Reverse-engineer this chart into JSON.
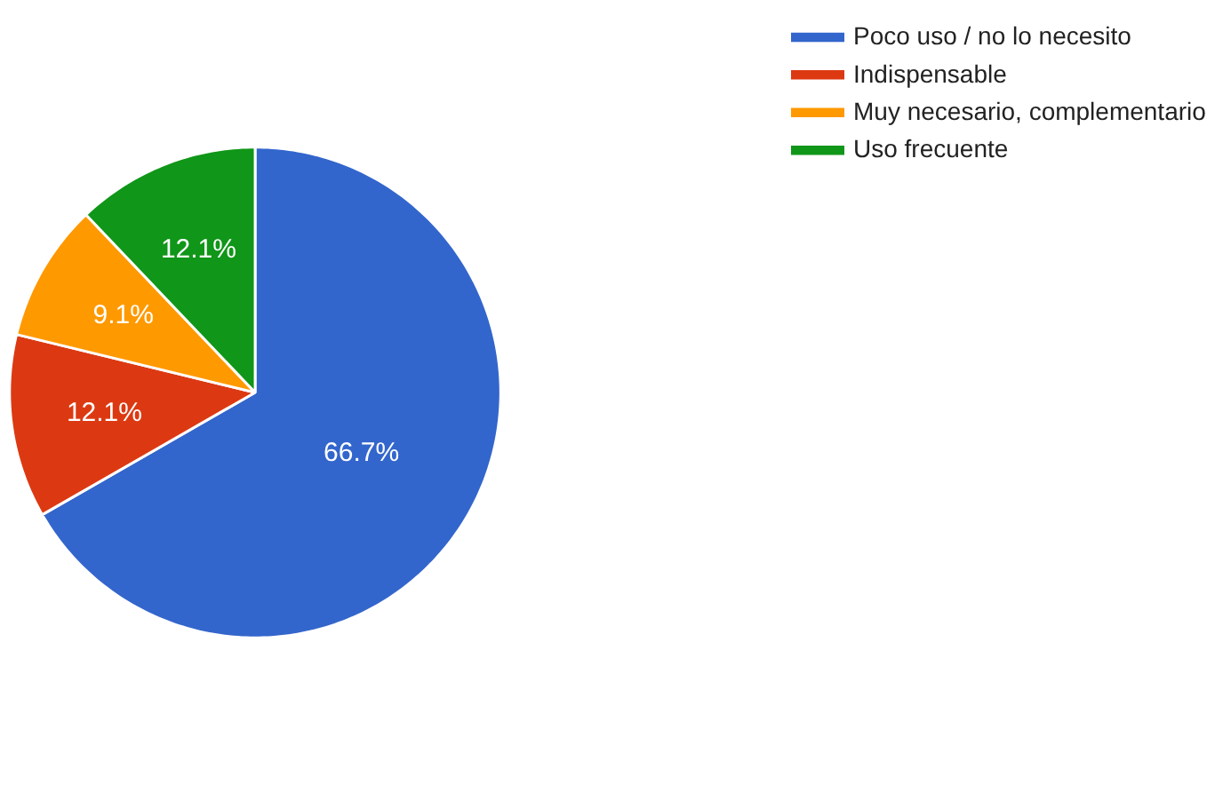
{
  "chart_data": {
    "type": "pie",
    "categories": [
      "Poco uso / no lo necesito",
      "Indispensable",
      "Muy necesario, complementario",
      "Uso frecuente"
    ],
    "values": [
      66.7,
      12.1,
      9.1,
      12.1
    ],
    "colors": [
      "#3366cc",
      "#dc3912",
      "#ff9900",
      "#109618"
    ],
    "value_labels": [
      "66.7%",
      "12.1%",
      "9.1%",
      "12.1%"
    ],
    "legend": "top right"
  }
}
